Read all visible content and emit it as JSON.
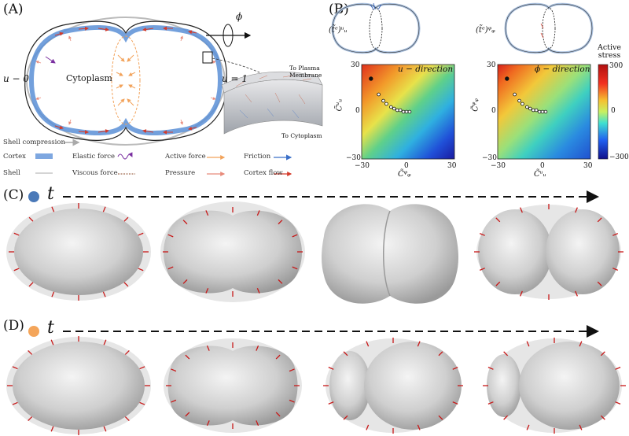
{
  "panels": {
    "a": "(A)",
    "b": "(B)",
    "c": "(C)",
    "d": "(D)"
  },
  "panel_a": {
    "cytoplasm_label": "Cytoplasm",
    "u0_label": "u − 0",
    "u1_label": "u = 1",
    "phi_label": "ϕ",
    "to_plasma_membrane": "To Plasma Membrane",
    "to_cytoplasm": "To Cytoplasm",
    "shell_compression": "Shell compression",
    "legend": {
      "cortex": "Cortex",
      "shell": "Shell",
      "elastic_force": "Elastic force",
      "viscous_force": "Viscous force",
      "active_force": "Active force",
      "pressure": "Pressure",
      "friction": "Friction",
      "cortex_flow": "Cortex flow"
    },
    "colors": {
      "cortex": "#5b8fd6",
      "shell": "#9a9a9a",
      "elastic": "#7a2fa0",
      "viscous": "#8b4a2a",
      "active": "#f2a25a",
      "pressure": "#e88a7a",
      "friction": "#3a6fc8",
      "flow": "#d43a2a"
    }
  },
  "panel_b": {
    "left_top_label": "(t̃ᵉ)ᵘᵤ",
    "right_top_label": "(t̃ᵉ)ᵠᵩ",
    "left_title": "u − direction",
    "right_title": "ϕ − direction",
    "colorbar_title": "Active stress",
    "colorbar_ticks": [
      "300",
      "0",
      "−300"
    ],
    "left_ylabel": "C̃ᵘᵤ",
    "left_xlabel": "C̃ᵠᵩ",
    "right_ylabel": "C̃ᵠᵩ",
    "right_xlabel": "C̃ᵘᵤ",
    "x_ticks": [
      "−30",
      "0",
      "30"
    ],
    "y_ticks": [
      "30",
      "0",
      "−30"
    ]
  },
  "chart_data": [
    {
      "type": "heatmap",
      "title": "u − direction",
      "xlabel": "C̃ᵠᵩ",
      "ylabel": "C̃ᵘᵤ",
      "xlim": [
        -30,
        30
      ],
      "ylim": [
        -30,
        30
      ],
      "trajectory_x": [
        -24,
        -19,
        -16,
        -14,
        -11,
        -9,
        -7,
        -5,
        -3,
        -1,
        1
      ],
      "trajectory_y": [
        21,
        11,
        7,
        5,
        3,
        2,
        1,
        1,
        0,
        0,
        0
      ]
    },
    {
      "type": "heatmap",
      "title": "ϕ − direction",
      "xlabel": "C̃ᵘᵤ",
      "ylabel": "C̃ᵠᵩ",
      "xlim": [
        -30,
        30
      ],
      "ylim": [
        -30,
        30
      ],
      "trajectory_x": [
        -24,
        -19,
        -16,
        -14,
        -11,
        -9,
        -7,
        -5,
        -3,
        -1,
        1
      ],
      "trajectory_y": [
        21,
        11,
        7,
        5,
        3,
        2,
        1,
        1,
        0,
        0,
        0
      ]
    }
  ],
  "row_c": {
    "time_label": "t",
    "dot_color": "#4a79b8"
  },
  "row_d": {
    "time_label": "t",
    "dot_color": "#f4a55a"
  }
}
